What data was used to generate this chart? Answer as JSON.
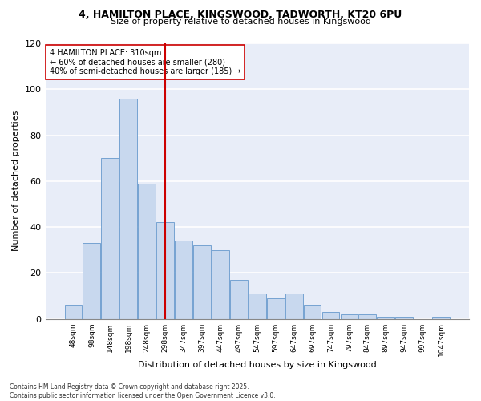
{
  "title_line1": "4, HAMILTON PLACE, KINGSWOOD, TADWORTH, KT20 6PU",
  "title_line2": "Size of property relative to detached houses in Kingswood",
  "xlabel": "Distribution of detached houses by size in Kingswood",
  "ylabel": "Number of detached properties",
  "fig_facecolor": "#ffffff",
  "ax_facecolor": "#e8edf8",
  "bar_color": "#c8d8ee",
  "bar_edge_color": "#6699cc",
  "bin_labels": [
    "48sqm",
    "98sqm",
    "148sqm",
    "198sqm",
    "248sqm",
    "298sqm",
    "347sqm",
    "397sqm",
    "447sqm",
    "497sqm",
    "547sqm",
    "597sqm",
    "647sqm",
    "697sqm",
    "747sqm",
    "797sqm",
    "847sqm",
    "897sqm",
    "947sqm",
    "997sqm",
    "1047sqm"
  ],
  "bar_heights": [
    6,
    33,
    70,
    96,
    59,
    42,
    34,
    32,
    30,
    17,
    11,
    9,
    11,
    6,
    3,
    2,
    2,
    1,
    1,
    0,
    1
  ],
  "ylim": [
    0,
    120
  ],
  "yticks": [
    0,
    20,
    40,
    60,
    80,
    100,
    120
  ],
  "marker_bin": 5.0,
  "marker_label": "4 HAMILTON PLACE: 310sqm",
  "pct_smaller": "60% of detached houses are smaller (280)",
  "pct_larger": "40% of semi-detached houses are larger (185)",
  "annotation_color": "#cc0000",
  "footer1": "Contains HM Land Registry data © Crown copyright and database right 2025.",
  "footer2": "Contains public sector information licensed under the Open Government Licence v3.0."
}
